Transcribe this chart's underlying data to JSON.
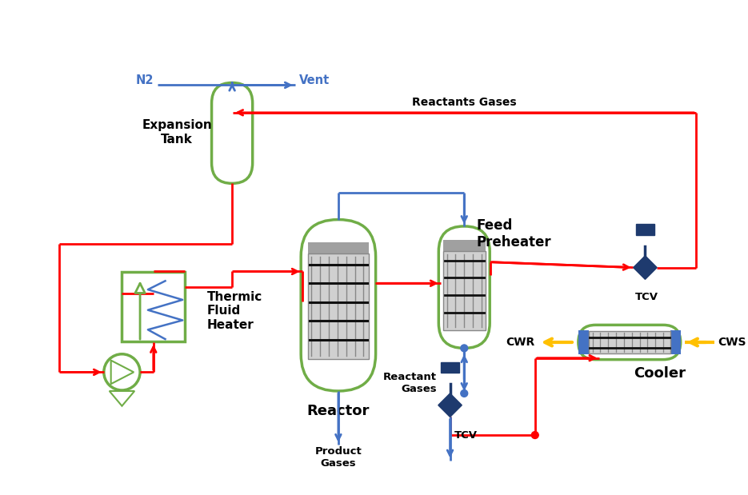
{
  "red": "#ff0000",
  "blue": "#4472c4",
  "green": "#70ad47",
  "yellow": "#ffc000",
  "dark_blue": "#1e3a6e",
  "light_gray": "#c8c8c8",
  "inner_fill": "#b8b8b8",
  "white": "#ffffff",
  "lw_pipe": 2.0,
  "lw_vessel": 2.5,
  "labels": {
    "N2": "N2",
    "Vent": "Vent",
    "expansion_tank": "Expansion\nTank",
    "thermic": "Thermic\nFluid\nHeater",
    "reactor": "Reactor",
    "feed_preheater": "Feed\nPreheater",
    "cooler": "Cooler",
    "TCV": "TCV",
    "CWR": "CWR",
    "CWS": "CWS",
    "reactants_gases_top": "Reactants Gases",
    "reactant_gases_mid": "Reactant\nGases",
    "product_gases": "Product\nGases"
  }
}
